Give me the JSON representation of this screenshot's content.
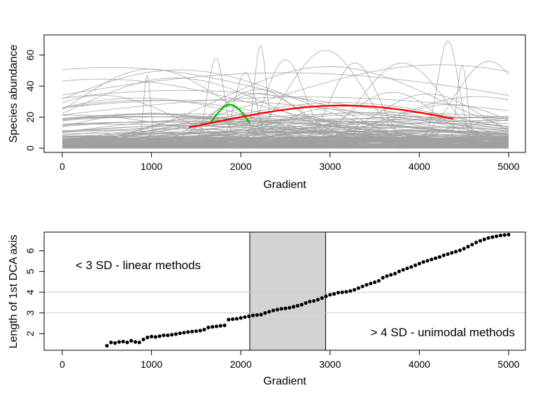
{
  "chart_data": [
    {
      "type": "line",
      "xlabel": "Gradient",
      "ylabel": "Species abundance",
      "xlim": [
        0,
        5000
      ],
      "ylim": [
        0,
        70
      ],
      "x_ticks": [
        "0",
        "1000",
        "2000",
        "3000",
        "4000",
        "5000"
      ],
      "y_ticks": [
        "0",
        "20",
        "40",
        "60"
      ],
      "background_series_color": "#a0a0a0",
      "highlight_series": [
        {
          "color": "#00c000",
          "center": 1880,
          "width": 210,
          "peak": 28,
          "x": [
            1660,
            2100
          ]
        },
        {
          "color": "#ff0000",
          "center": 3140,
          "width": 1440,
          "peak": 27.5,
          "x": [
            1420,
            4380
          ]
        }
      ]
    },
    {
      "type": "scatter",
      "xlabel": "Gradient",
      "ylabel": "Length of 1st DCA axis",
      "xlim": [
        0,
        5000
      ],
      "ylim": [
        1.2,
        6.9
      ],
      "x_ticks": [
        "0",
        "1000",
        "2000",
        "3000",
        "4000",
        "5000"
      ],
      "y_ticks": [
        "2",
        "3",
        "4",
        "5",
        "6"
      ],
      "hlines": [
        3,
        4
      ],
      "shaded_region": {
        "from": 2100,
        "to": 2950,
        "color": "#d3d3d3"
      },
      "annotations": [
        "< 3 SD - linear methods",
        "> 4 SD - unimodal methods"
      ],
      "points": {
        "x_start": 500,
        "x_end": 5000,
        "count": 100,
        "y": [
          1.42,
          1.58,
          1.55,
          1.6,
          1.62,
          1.58,
          1.66,
          1.6,
          1.58,
          1.72,
          1.82,
          1.86,
          1.84,
          1.88,
          1.92,
          1.92,
          1.95,
          1.98,
          2.02,
          2.05,
          2.08,
          2.1,
          2.12,
          2.15,
          2.2,
          2.3,
          2.33,
          2.35,
          2.38,
          2.4,
          2.68,
          2.7,
          2.72,
          2.76,
          2.8,
          2.84,
          2.88,
          2.9,
          2.92,
          3.0,
          3.06,
          3.12,
          3.16,
          3.2,
          3.22,
          3.25,
          3.3,
          3.35,
          3.4,
          3.48,
          3.55,
          3.58,
          3.64,
          3.72,
          3.8,
          3.88,
          3.92,
          3.98,
          4.0,
          4.02,
          4.06,
          4.12,
          4.2,
          4.28,
          4.36,
          4.42,
          4.48,
          4.55,
          4.7,
          4.78,
          4.84,
          4.9,
          5.0,
          5.08,
          5.15,
          5.22,
          5.3,
          5.38,
          5.46,
          5.52,
          5.58,
          5.64,
          5.7,
          5.78,
          5.84,
          5.9,
          5.96,
          6.02,
          6.1,
          6.2,
          6.3,
          6.4,
          6.48,
          6.55,
          6.62,
          6.66,
          6.7,
          6.74,
          6.76,
          6.78
        ]
      }
    }
  ]
}
